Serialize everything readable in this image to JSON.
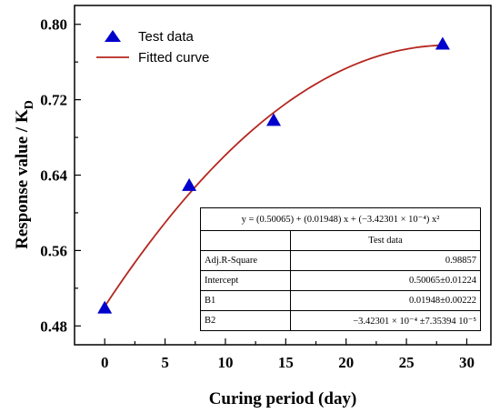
{
  "chart_data": {
    "type": "scatter",
    "xlabel": "Curing period (day)",
    "ylabel_main": "Response value / K",
    "ylabel_sub": "D",
    "xlim": [
      -2.5,
      32
    ],
    "ylim": [
      0.46,
      0.82
    ],
    "xticks": [
      0,
      5,
      10,
      15,
      20,
      25,
      30
    ],
    "yticks": [
      0.48,
      0.56,
      0.64,
      0.72,
      0.8
    ],
    "ytick_labels": [
      "0.48",
      "0.56",
      "0.64",
      "0.72",
      "0.80"
    ],
    "series": [
      {
        "name": "Test data",
        "kind": "scatter",
        "marker": "triangle",
        "color": "#0000cc",
        "x": [
          0,
          7,
          14,
          28
        ],
        "y": [
          0.499,
          0.629,
          0.698,
          0.779
        ]
      },
      {
        "name": "Fitted curve",
        "kind": "line",
        "color": "#b5271f",
        "coefficients": {
          "intercept": 0.50065,
          "b1": 0.01948,
          "b2": -0.000342301
        },
        "x_range": [
          0,
          28
        ]
      }
    ],
    "legend": {
      "position": "top-left",
      "items": [
        {
          "label": "Test data",
          "symbol": "triangle",
          "color": "#0000cc"
        },
        {
          "label": "Fitted curve",
          "symbol": "line",
          "color": "#b5271f"
        }
      ]
    },
    "fit_table": {
      "equation": "y =  (0.50065) + (0.01948) x + (−3.42301 × 10⁻⁴) x²",
      "header": "Test data",
      "rows": [
        {
          "label": "Adj.R-Square",
          "value": "0.98857"
        },
        {
          "label": "Intercept",
          "value": "0.50065±0.01224"
        },
        {
          "label": "B1",
          "value": "0.01948±0.00222"
        },
        {
          "label": "B2",
          "value": "−3.42301 × 10⁻⁴ ±7.35394 10⁻⁵"
        }
      ]
    }
  }
}
